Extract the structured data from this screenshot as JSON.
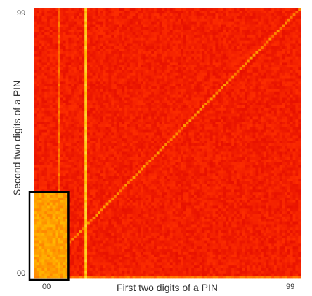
{
  "chart_data": {
    "type": "heatmap",
    "title": "",
    "xlabel": "First two digits of a PIN",
    "ylabel": "Second two digits of a PIN",
    "x_ticks": [
      "00",
      "99"
    ],
    "y_ticks": [
      "00",
      "99"
    ],
    "x_range": [
      0,
      99
    ],
    "y_range": [
      0,
      99
    ],
    "colormap": [
      "#e60f00",
      "#ff3000",
      "#ff7a00",
      "#ffb700",
      "#ffe03a"
    ],
    "baseline_level": 0.12,
    "bright_features": [
      {
        "kind": "diagonal",
        "description": "x equals y",
        "level": 0.55
      },
      {
        "kind": "column",
        "x": 19,
        "level": 0.85
      },
      {
        "kind": "column",
        "x": 9,
        "level": 0.45
      },
      {
        "kind": "row",
        "y": 0,
        "level": 0.45
      },
      {
        "kind": "region",
        "x_range": [
          0,
          12
        ],
        "y_range": [
          0,
          31
        ],
        "level": 0.65
      }
    ],
    "highlight_box": {
      "x_range": [
        0,
        12
      ],
      "y_range": [
        0,
        31
      ]
    }
  }
}
